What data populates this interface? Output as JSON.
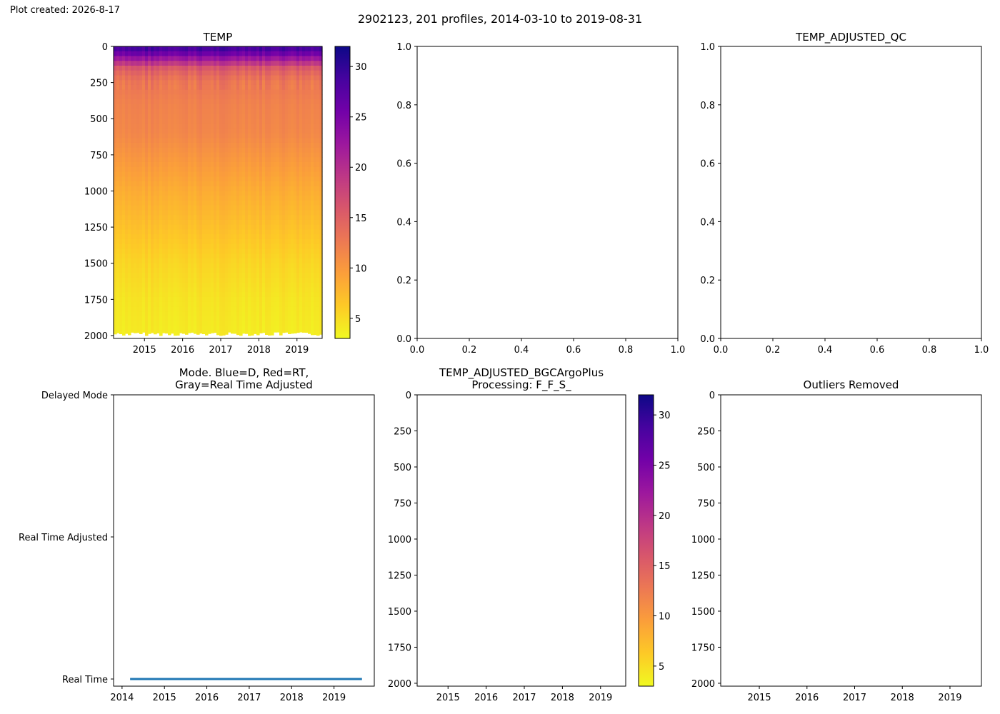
{
  "figure": {
    "created_label": "Plot created: 2026-8-17",
    "suptitle": "2902123, 201 profiles, 2014-03-10 to 2019-08-31"
  },
  "colors": {
    "plasma": [
      "#0d0887",
      "#46039f",
      "#7201a8",
      "#9c179e",
      "#bd3786",
      "#d8576b",
      "#ed7953",
      "#fb9f3a",
      "#fdca26",
      "#f0f921"
    ],
    "mode_line": "#1f77b4",
    "axis": "#000000",
    "background": "#ffffff"
  },
  "chart_data": [
    {
      "id": "temp",
      "type": "heatmap",
      "title": "TEMP",
      "colormap": "plasma_r",
      "x_ticks": [
        "2015",
        "2016",
        "2017",
        "2018",
        "2019"
      ],
      "x_tick_values": [
        2015,
        2016,
        2017,
        2018,
        2019
      ],
      "xlim": [
        2014.19,
        2019.66
      ],
      "y_ticks": [
        "0",
        "250",
        "500",
        "750",
        "1000",
        "1250",
        "1500",
        "1750",
        "2000"
      ],
      "y_tick_values": [
        0,
        250,
        500,
        750,
        1000,
        1250,
        1500,
        1750,
        2000
      ],
      "ylim": [
        2020,
        0
      ],
      "y_inverted": true,
      "colorbar": {
        "ticks": [
          "5",
          "10",
          "15",
          "20",
          "25",
          "30"
        ],
        "tick_values": [
          5,
          10,
          15,
          20,
          25,
          30
        ],
        "range": [
          3,
          32
        ]
      },
      "profile_depths": [
        0,
        50,
        100,
        150,
        200,
        250,
        400,
        600,
        800,
        1000,
        1250,
        1500,
        1750,
        2000
      ],
      "profile_temps": [
        30,
        26,
        21,
        16,
        14,
        13,
        12,
        11.5,
        10,
        8.5,
        7,
        5.5,
        4.5,
        4
      ]
    },
    {
      "id": "empty-middle",
      "type": "scatter",
      "title": "",
      "x_ticks": [
        "0.0",
        "0.2",
        "0.4",
        "0.6",
        "0.8",
        "1.0"
      ],
      "y_ticks": [
        "0.0",
        "0.2",
        "0.4",
        "0.6",
        "0.8",
        "1.0"
      ],
      "xlim": [
        0,
        1
      ],
      "ylim": [
        0,
        1
      ],
      "values": []
    },
    {
      "id": "temp-adjusted-qc",
      "type": "scatter",
      "title": "TEMP_ADJUSTED_QC",
      "x_ticks": [
        "0.0",
        "0.2",
        "0.4",
        "0.6",
        "0.8",
        "1.0"
      ],
      "y_ticks": [
        "0.0",
        "0.2",
        "0.4",
        "0.6",
        "0.8",
        "1.0"
      ],
      "xlim": [
        0,
        1
      ],
      "ylim": [
        0,
        1
      ],
      "values": []
    },
    {
      "id": "mode",
      "type": "line",
      "title": "Mode. Blue=D, Red=RT,\nGray=Real Time Adjusted",
      "x_ticks": [
        "2014",
        "2015",
        "2016",
        "2017",
        "2018",
        "2019"
      ],
      "x_tick_values": [
        2014,
        2015,
        2016,
        2017,
        2018,
        2019
      ],
      "xlim": [
        2013.8,
        2019.95
      ],
      "y_ticks": [
        "Delayed Mode",
        "Real Time Adjusted",
        "Real Time"
      ],
      "y_tick_values": [
        2,
        1,
        0
      ],
      "ylim": [
        0,
        2
      ],
      "series": [
        {
          "x": [
            2014.19,
            2019.66
          ],
          "y": [
            0,
            0
          ],
          "color": "#1f77b4"
        }
      ]
    },
    {
      "id": "temp-adjusted-bgc",
      "type": "heatmap",
      "title": "TEMP_ADJUSTED_BGCArgoPlus\nProcessing: F_F_S_",
      "colormap": "plasma_r",
      "x_ticks": [
        "2015",
        "2016",
        "2017",
        "2018",
        "2019"
      ],
      "x_tick_values": [
        2015,
        2016,
        2017,
        2018,
        2019
      ],
      "xlim": [
        2014.19,
        2019.66
      ],
      "y_ticks": [
        "0",
        "250",
        "500",
        "750",
        "1000",
        "1250",
        "1500",
        "1750",
        "2000"
      ],
      "y_tick_values": [
        0,
        250,
        500,
        750,
        1000,
        1250,
        1500,
        1750,
        2000
      ],
      "ylim": [
        2020,
        0
      ],
      "y_inverted": true,
      "colorbar": {
        "ticks": [
          "5",
          "10",
          "15",
          "20",
          "25",
          "30"
        ],
        "tick_values": [
          5,
          10,
          15,
          20,
          25,
          30
        ],
        "range": [
          3,
          32
        ]
      },
      "values": []
    },
    {
      "id": "outliers-removed",
      "type": "heatmap",
      "title": "Outliers Removed",
      "x_ticks": [
        "2015",
        "2016",
        "2017",
        "2018",
        "2019"
      ],
      "x_tick_values": [
        2015,
        2016,
        2017,
        2018,
        2019
      ],
      "xlim": [
        2014.19,
        2019.66
      ],
      "y_ticks": [
        "0",
        "250",
        "500",
        "750",
        "1000",
        "1250",
        "1500",
        "1750",
        "2000"
      ],
      "y_tick_values": [
        0,
        250,
        500,
        750,
        1000,
        1250,
        1500,
        1750,
        2000
      ],
      "ylim": [
        2020,
        0
      ],
      "y_inverted": true,
      "values": []
    }
  ]
}
